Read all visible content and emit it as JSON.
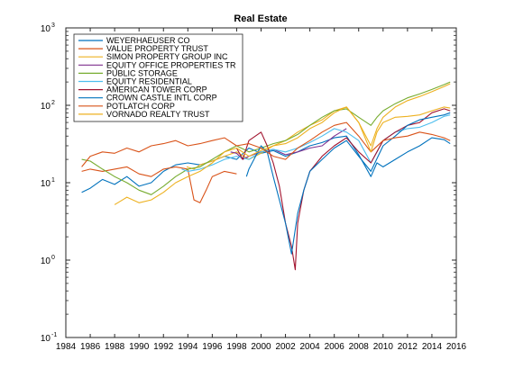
{
  "chart_data": {
    "type": "line",
    "title": "Real Estate",
    "xlabel": "",
    "ylabel": "",
    "xlim": [
      1984,
      2016
    ],
    "ylim": [
      0.1,
      1000
    ],
    "yscale": "log",
    "grid": false,
    "legend_location": "top-left",
    "x_ticks": [
      "1984",
      "1986",
      "1988",
      "1990",
      "1992",
      "1994",
      "1996",
      "1998",
      "2000",
      "2002",
      "2004",
      "2006",
      "2008",
      "2010",
      "2012",
      "2014",
      "2016"
    ],
    "y_ticks": [
      {
        "value": 0.1,
        "base": "10",
        "exp": "-1"
      },
      {
        "value": 1,
        "base": "10",
        "exp": "0"
      },
      {
        "value": 10,
        "base": "10",
        "exp": "1"
      },
      {
        "value": 100,
        "base": "10",
        "exp": "2"
      },
      {
        "value": 1000,
        "base": "10",
        "exp": "3"
      }
    ],
    "series": [
      {
        "name": "WEYERHAEUSER CO",
        "color": "#0072bd",
        "points": [
          [
            1985.3,
            7.5
          ],
          [
            1986,
            8.5
          ],
          [
            1987,
            11
          ],
          [
            1988,
            9.5
          ],
          [
            1989,
            12
          ],
          [
            1990,
            9
          ],
          [
            1991,
            10
          ],
          [
            1992,
            14
          ],
          [
            1993,
            17
          ],
          [
            1994,
            18
          ],
          [
            1995,
            17
          ],
          [
            1996,
            19
          ],
          [
            1997,
            22
          ],
          [
            1998,
            20
          ],
          [
            1999,
            28
          ],
          [
            2000,
            24
          ],
          [
            2001,
            26
          ],
          [
            2002,
            22
          ],
          [
            2003,
            25
          ],
          [
            2004,
            30
          ],
          [
            2005,
            33
          ],
          [
            2006,
            38
          ],
          [
            2007,
            40
          ],
          [
            2008,
            23
          ],
          [
            2009,
            12
          ],
          [
            2009.5,
            18
          ],
          [
            2010,
            16
          ],
          [
            2011,
            20
          ],
          [
            2012,
            25
          ],
          [
            2013,
            30
          ],
          [
            2014,
            38
          ],
          [
            2015,
            36
          ],
          [
            2015.5,
            32
          ]
        ]
      },
      {
        "name": "VALUE PROPERTY TRUST",
        "color": "#d95319",
        "points": [
          [
            1985.3,
            14
          ],
          [
            1986,
            15
          ],
          [
            1987,
            14
          ],
          [
            1988,
            15
          ],
          [
            1989,
            16
          ],
          [
            1990,
            13
          ],
          [
            1991,
            12
          ],
          [
            1992,
            15
          ],
          [
            1993,
            16
          ],
          [
            1994,
            15
          ],
          [
            1994.5,
            6
          ],
          [
            1995,
            5.5
          ],
          [
            1995.5,
            8
          ],
          [
            1996,
            12
          ],
          [
            1997,
            14
          ],
          [
            1998,
            13
          ]
        ]
      },
      {
        "name": "SIMON PROPERTY GROUP INC",
        "color": "#edb120",
        "points": [
          [
            1993.9,
            16
          ],
          [
            1994.5,
            15
          ],
          [
            1995,
            17
          ],
          [
            1996,
            19
          ],
          [
            1997,
            22
          ],
          [
            1998,
            25
          ],
          [
            1999,
            20
          ],
          [
            2000,
            24
          ],
          [
            2001,
            30
          ],
          [
            2002,
            35
          ],
          [
            2003,
            45
          ],
          [
            2004,
            55
          ],
          [
            2005,
            65
          ],
          [
            2006,
            85
          ],
          [
            2007,
            95
          ],
          [
            2008,
            60
          ],
          [
            2009,
            30
          ],
          [
            2009.5,
            50
          ],
          [
            2010,
            70
          ],
          [
            2011,
            95
          ],
          [
            2012,
            115
          ],
          [
            2013,
            130
          ],
          [
            2014,
            150
          ],
          [
            2015,
            175
          ],
          [
            2015.5,
            190
          ]
        ]
      },
      {
        "name": "EQUITY OFFICE PROPERTIES TR",
        "color": "#7e2f8e",
        "points": [
          [
            1997.5,
            25
          ],
          [
            1998,
            24
          ],
          [
            1998.5,
            20
          ],
          [
            1999,
            22
          ],
          [
            2000,
            25
          ],
          [
            2001,
            27
          ],
          [
            2002,
            23
          ],
          [
            2003,
            25
          ],
          [
            2004,
            28
          ],
          [
            2005,
            30
          ],
          [
            2006,
            40
          ],
          [
            2007,
            50
          ]
        ]
      },
      {
        "name": "PUBLIC STORAGE",
        "color": "#77ac30",
        "points": [
          [
            1985.3,
            20
          ],
          [
            1986,
            19
          ],
          [
            1987,
            15
          ],
          [
            1988,
            12
          ],
          [
            1989,
            10
          ],
          [
            1990,
            8
          ],
          [
            1991,
            7
          ],
          [
            1992,
            9
          ],
          [
            1993,
            12
          ],
          [
            1994,
            15
          ],
          [
            1995,
            16
          ],
          [
            1996,
            20
          ],
          [
            1997,
            25
          ],
          [
            1998,
            30
          ],
          [
            1999,
            25
          ],
          [
            2000,
            28
          ],
          [
            2001,
            32
          ],
          [
            2002,
            35
          ],
          [
            2003,
            42
          ],
          [
            2004,
            55
          ],
          [
            2005,
            70
          ],
          [
            2006,
            85
          ],
          [
            2007,
            90
          ],
          [
            2008,
            70
          ],
          [
            2009,
            55
          ],
          [
            2009.5,
            70
          ],
          [
            2010,
            85
          ],
          [
            2011,
            105
          ],
          [
            2012,
            125
          ],
          [
            2013,
            140
          ],
          [
            2014,
            160
          ],
          [
            2015,
            185
          ],
          [
            2015.5,
            200
          ]
        ]
      },
      {
        "name": "EQUITY RESIDENTIAL",
        "color": "#4dbeee",
        "points": [
          [
            1993.5,
            15
          ],
          [
            1994,
            14
          ],
          [
            1995,
            15
          ],
          [
            1996,
            17
          ],
          [
            1997,
            20
          ],
          [
            1998,
            22
          ],
          [
            1999,
            20
          ],
          [
            2000,
            25
          ],
          [
            2001,
            27
          ],
          [
            2002,
            25
          ],
          [
            2003,
            28
          ],
          [
            2004,
            33
          ],
          [
            2005,
            40
          ],
          [
            2006,
            50
          ],
          [
            2007,
            45
          ],
          [
            2008,
            35
          ],
          [
            2009,
            18
          ],
          [
            2009.5,
            25
          ],
          [
            2010,
            35
          ],
          [
            2011,
            45
          ],
          [
            2012,
            50
          ],
          [
            2013,
            52
          ],
          [
            2014,
            60
          ],
          [
            2015,
            72
          ],
          [
            2015.5,
            75
          ]
        ]
      },
      {
        "name": "AMERICAN TOWER CORP",
        "color": "#a2142f",
        "points": [
          [
            1998,
            28
          ],
          [
            1998.5,
            20
          ],
          [
            1999,
            35
          ],
          [
            2000,
            45
          ],
          [
            2000.5,
            30
          ],
          [
            2001,
            18
          ],
          [
            2001.5,
            9
          ],
          [
            2002,
            3
          ],
          [
            2002.5,
            1.5
          ],
          [
            2002.8,
            0.75
          ],
          [
            2003,
            3
          ],
          [
            2003.5,
            8
          ],
          [
            2004,
            14
          ],
          [
            2005,
            22
          ],
          [
            2006,
            30
          ],
          [
            2007,
            38
          ],
          [
            2008,
            25
          ],
          [
            2009,
            18
          ],
          [
            2010,
            35
          ],
          [
            2011,
            45
          ],
          [
            2012,
            55
          ],
          [
            2013,
            60
          ],
          [
            2014,
            80
          ],
          [
            2015,
            90
          ],
          [
            2015.5,
            85
          ]
        ]
      },
      {
        "name": "CROWN CASTLE INTL CORP",
        "color": "#0072bd",
        "points": [
          [
            1998.8,
            12
          ],
          [
            1999,
            15
          ],
          [
            2000,
            30
          ],
          [
            2000.5,
            25
          ],
          [
            2001,
            12
          ],
          [
            2001.5,
            6
          ],
          [
            2002,
            3
          ],
          [
            2002.5,
            1.2
          ],
          [
            2003,
            4
          ],
          [
            2003.5,
            8
          ],
          [
            2004,
            14
          ],
          [
            2005,
            20
          ],
          [
            2006,
            28
          ],
          [
            2007,
            35
          ],
          [
            2008,
            22
          ],
          [
            2009,
            14
          ],
          [
            2010,
            30
          ],
          [
            2011,
            40
          ],
          [
            2012,
            55
          ],
          [
            2013,
            65
          ],
          [
            2014,
            70
          ],
          [
            2015,
            75
          ],
          [
            2015.5,
            80
          ]
        ]
      },
      {
        "name": "POTLATCH CORP",
        "color": "#d95319",
        "points": [
          [
            1985.3,
            16
          ],
          [
            1986,
            22
          ],
          [
            1987,
            25
          ],
          [
            1988,
            24
          ],
          [
            1989,
            28
          ],
          [
            1990,
            25
          ],
          [
            1991,
            30
          ],
          [
            1992,
            32
          ],
          [
            1993,
            35
          ],
          [
            1994,
            30
          ],
          [
            1995,
            32
          ],
          [
            1996,
            35
          ],
          [
            1997,
            38
          ],
          [
            1998,
            30
          ],
          [
            1999,
            32
          ],
          [
            2000,
            28
          ],
          [
            2001,
            22
          ],
          [
            2002,
            20
          ],
          [
            2003,
            28
          ],
          [
            2004,
            35
          ],
          [
            2005,
            45
          ],
          [
            2006,
            55
          ],
          [
            2007,
            60
          ],
          [
            2008,
            40
          ],
          [
            2009,
            25
          ],
          [
            2010,
            35
          ],
          [
            2011,
            38
          ],
          [
            2012,
            40
          ],
          [
            2013,
            45
          ],
          [
            2014,
            42
          ],
          [
            2015,
            38
          ],
          [
            2015.5,
            35
          ]
        ]
      },
      {
        "name": "VORNADO REALTY TRUST",
        "color": "#edb120",
        "points": [
          [
            1988,
            5.2
          ],
          [
            1988.5,
            5.8
          ],
          [
            1989,
            6.5
          ],
          [
            1990,
            5.5
          ],
          [
            1991,
            6
          ],
          [
            1992,
            7.5
          ],
          [
            1993,
            10
          ],
          [
            1994,
            12
          ],
          [
            1995,
            14
          ],
          [
            1996,
            18
          ],
          [
            1997,
            25
          ],
          [
            1998,
            28
          ],
          [
            1999,
            22
          ],
          [
            2000,
            26
          ],
          [
            2001,
            30
          ],
          [
            2002,
            32
          ],
          [
            2003,
            38
          ],
          [
            2004,
            50
          ],
          [
            2005,
            60
          ],
          [
            2006,
            80
          ],
          [
            2007,
            95
          ],
          [
            2008,
            60
          ],
          [
            2009,
            25
          ],
          [
            2009.5,
            45
          ],
          [
            2010,
            60
          ],
          [
            2011,
            70
          ],
          [
            2012,
            72
          ],
          [
            2013,
            75
          ],
          [
            2014,
            85
          ],
          [
            2015,
            95
          ],
          [
            2015.5,
            92
          ]
        ]
      }
    ]
  }
}
